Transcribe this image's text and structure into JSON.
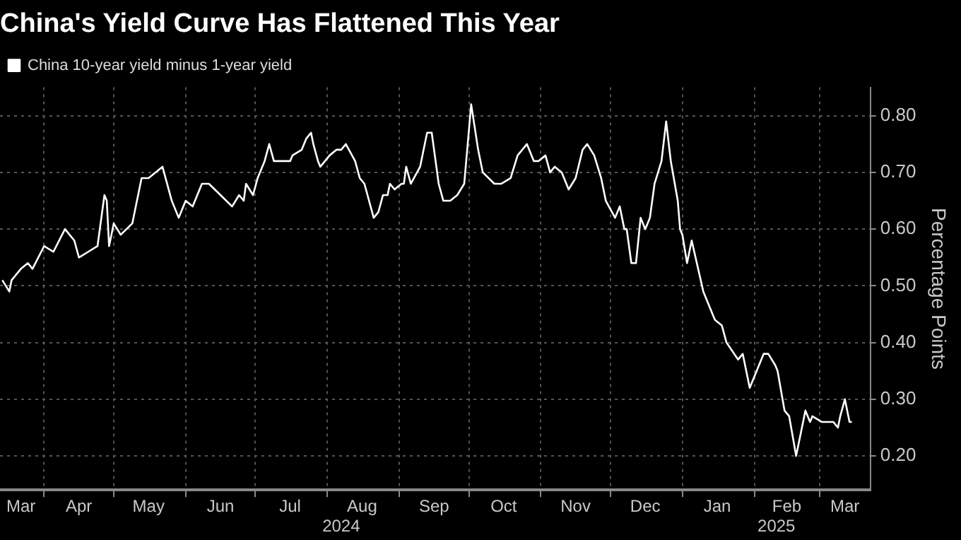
{
  "chart_data": {
    "type": "line",
    "title": "China's Yield Curve Has Flattened This Year",
    "ylabel": "Percentage Points",
    "x": [
      "2024-03-14",
      "2024-03-17",
      "2024-03-18",
      "2024-03-22",
      "2024-03-25",
      "2024-03-27",
      "2024-04-01",
      "2024-04-05",
      "2024-04-10",
      "2024-04-14",
      "2024-04-16",
      "2024-04-20",
      "2024-04-24",
      "2024-04-27",
      "2024-04-28",
      "2024-04-29",
      "2024-05-01",
      "2024-05-04",
      "2024-05-09",
      "2024-05-13",
      "2024-05-16",
      "2024-05-19",
      "2024-05-22",
      "2024-05-26",
      "2024-05-29",
      "2024-06-01",
      "2024-06-04",
      "2024-06-08",
      "2024-06-11",
      "2024-06-16",
      "2024-06-21",
      "2024-06-24",
      "2024-06-26",
      "2024-06-27",
      "2024-06-30",
      "2024-07-02",
      "2024-07-05",
      "2024-07-07",
      "2024-07-09",
      "2024-07-13",
      "2024-07-16",
      "2024-07-17",
      "2024-07-21",
      "2024-07-23",
      "2024-07-25",
      "2024-07-26",
      "2024-07-28",
      "2024-07-29",
      "2024-07-31",
      "2024-08-02",
      "2024-08-05",
      "2024-08-07",
      "2024-08-09",
      "2024-08-13",
      "2024-08-15",
      "2024-08-17",
      "2024-08-21",
      "2024-08-23",
      "2024-08-25",
      "2024-08-27",
      "2024-08-28",
      "2024-08-30",
      "2024-09-02",
      "2024-09-03",
      "2024-09-04",
      "2024-09-06",
      "2024-09-10",
      "2024-09-13",
      "2024-09-15",
      "2024-09-18",
      "2024-09-20",
      "2024-09-23",
      "2024-09-26",
      "2024-09-29",
      "2024-10-02",
      "2024-10-05",
      "2024-10-07",
      "2024-10-12",
      "2024-10-15",
      "2024-10-19",
      "2024-10-22",
      "2024-10-26",
      "2024-10-29",
      "2024-10-31",
      "2024-11-03",
      "2024-11-05",
      "2024-11-07",
      "2024-11-10",
      "2024-11-13",
      "2024-11-16",
      "2024-11-19",
      "2024-11-21",
      "2024-11-24",
      "2024-11-27",
      "2024-11-29",
      "2024-12-03",
      "2024-12-05",
      "2024-12-07",
      "2024-12-08",
      "2024-12-10",
      "2024-12-12",
      "2024-12-14",
      "2024-12-16",
      "2024-12-18",
      "2024-12-20",
      "2024-12-23",
      "2024-12-25",
      "2024-12-27",
      "2024-12-30",
      "2024-12-31",
      "2025-01-01",
      "2025-01-03",
      "2025-01-05",
      "2025-01-10",
      "2025-01-15",
      "2025-01-18",
      "2025-01-20",
      "2025-01-25",
      "2025-01-27",
      "2025-01-30",
      "2025-02-01",
      "2025-02-05",
      "2025-02-07",
      "2025-02-10",
      "2025-02-11",
      "2025-02-14",
      "2025-02-16",
      "2025-02-19",
      "2025-02-20",
      "2025-02-23",
      "2025-02-25",
      "2025-02-26",
      "2025-03-02",
      "2025-03-05",
      "2025-03-07",
      "2025-03-09",
      "2025-03-10",
      "2025-03-12",
      "2025-03-14",
      "2025-03-15"
    ],
    "series": [
      {
        "name": "China 10-year yield minus 1-year yield",
        "color": "#ffffff",
        "values": [
          0.51,
          0.49,
          0.51,
          0.53,
          0.54,
          0.53,
          0.57,
          0.56,
          0.6,
          0.58,
          0.55,
          0.56,
          0.57,
          0.66,
          0.65,
          0.57,
          0.61,
          0.59,
          0.61,
          0.69,
          0.69,
          0.7,
          0.71,
          0.65,
          0.62,
          0.65,
          0.64,
          0.68,
          0.68,
          0.66,
          0.64,
          0.66,
          0.65,
          0.68,
          0.66,
          0.69,
          0.72,
          0.75,
          0.72,
          0.72,
          0.72,
          0.73,
          0.74,
          0.76,
          0.77,
          0.75,
          0.72,
          0.71,
          0.72,
          0.73,
          0.74,
          0.74,
          0.75,
          0.72,
          0.69,
          0.68,
          0.62,
          0.63,
          0.66,
          0.66,
          0.68,
          0.67,
          0.68,
          0.68,
          0.71,
          0.68,
          0.71,
          0.77,
          0.77,
          0.68,
          0.65,
          0.65,
          0.66,
          0.68,
          0.82,
          0.74,
          0.7,
          0.68,
          0.68,
          0.69,
          0.73,
          0.75,
          0.72,
          0.72,
          0.73,
          0.7,
          0.71,
          0.7,
          0.67,
          0.69,
          0.74,
          0.75,
          0.73,
          0.69,
          0.65,
          0.62,
          0.64,
          0.6,
          0.6,
          0.54,
          0.54,
          0.62,
          0.6,
          0.62,
          0.68,
          0.72,
          0.79,
          0.72,
          0.65,
          0.6,
          0.59,
          0.54,
          0.58,
          0.49,
          0.44,
          0.43,
          0.4,
          0.37,
          0.38,
          0.32,
          0.34,
          0.38,
          0.38,
          0.36,
          0.35,
          0.28,
          0.27,
          0.2,
          0.22,
          0.28,
          0.26,
          0.27,
          0.26,
          0.26,
          0.26,
          0.25,
          0.27,
          0.3,
          0.26,
          0.26
        ]
      }
    ],
    "xlim": [
      "2024-03-13",
      "2025-03-23"
    ],
    "xticks": [
      {
        "value": "2024-03-22",
        "label": "Mar"
      },
      {
        "value": "2024-04-01",
        "label": null
      },
      {
        "value": "2024-04-16",
        "label": "Apr"
      },
      {
        "value": "2024-05-01",
        "label": null
      },
      {
        "value": "2024-05-16",
        "label": "May"
      },
      {
        "value": "2024-06-01",
        "label": null
      },
      {
        "value": "2024-06-16",
        "label": "Jun"
      },
      {
        "value": "2024-07-01",
        "label": null
      },
      {
        "value": "2024-07-16",
        "label": "Jul"
      },
      {
        "value": "2024-08-01",
        "label": null
      },
      {
        "value": "2024-08-16",
        "label": "Aug"
      },
      {
        "value": "2024-09-01",
        "label": null
      },
      {
        "value": "2024-09-16",
        "label": "Sep"
      },
      {
        "value": "2024-10-01",
        "label": null
      },
      {
        "value": "2024-10-16",
        "label": "Oct"
      },
      {
        "value": "2024-11-01",
        "label": null
      },
      {
        "value": "2024-11-16",
        "label": "Nov"
      },
      {
        "value": "2024-12-01",
        "label": null
      },
      {
        "value": "2024-12-16",
        "label": "Dec"
      },
      {
        "value": "2025-01-01",
        "label": null
      },
      {
        "value": "2025-01-16",
        "label": "Jan"
      },
      {
        "value": "2025-02-01",
        "label": null
      },
      {
        "value": "2025-02-15",
        "label": "Feb"
      },
      {
        "value": "2025-03-01",
        "label": null
      },
      {
        "value": "2025-03-12",
        "label": "Mar"
      }
    ],
    "ylim": [
      0.14,
      0.85
    ],
    "yticks": [
      {
        "value": 0.2,
        "label": "0.20"
      },
      {
        "value": 0.3,
        "label": "0.30"
      },
      {
        "value": 0.4,
        "label": "0.40"
      },
      {
        "value": 0.5,
        "label": "0.50"
      },
      {
        "value": 0.6,
        "label": "0.60"
      },
      {
        "value": 0.7,
        "label": "0.70"
      },
      {
        "value": 0.8,
        "label": "0.80"
      }
    ],
    "annotations": [
      "2024",
      "2025"
    ],
    "grid": true,
    "legend": "top left",
    "marker": "none",
    "line_style": "solid"
  }
}
